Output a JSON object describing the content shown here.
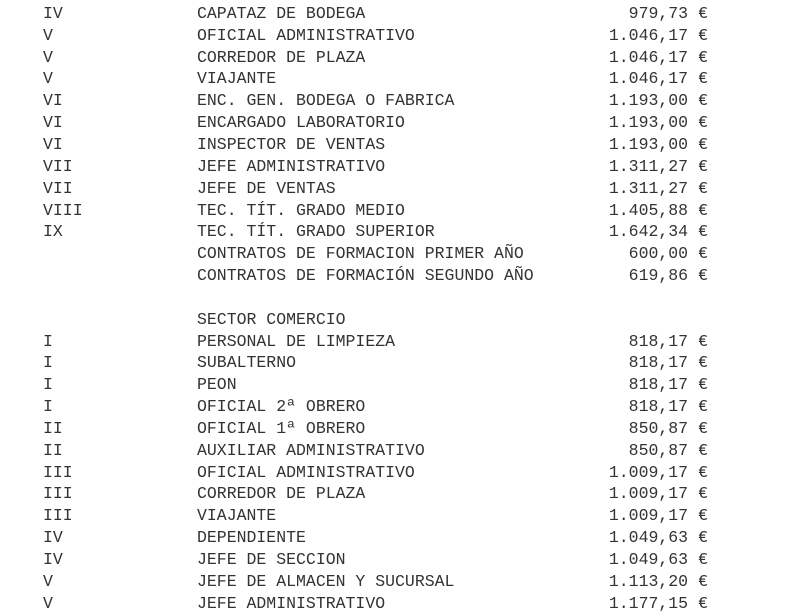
{
  "document": {
    "background_color": "#ffffff",
    "text_color": "#333333",
    "currency_symbol": "€",
    "sections": [
      {
        "heading": null,
        "rows": [
          {
            "category": "IV",
            "title": "CAPATAZ DE BODEGA",
            "amount": "979,73"
          },
          {
            "category": "V",
            "title": "OFICIAL ADMINISTRATIVO",
            "amount": "1.046,17"
          },
          {
            "category": "V",
            "title": "CORREDOR DE PLAZA",
            "amount": "1.046,17"
          },
          {
            "category": "V",
            "title": "VIAJANTE",
            "amount": "1.046,17"
          },
          {
            "category": "VI",
            "title": "ENC. GEN. BODEGA O FABRICA",
            "amount": "1.193,00"
          },
          {
            "category": "VI",
            "title": "ENCARGADO LABORATORIO",
            "amount": "1.193,00"
          },
          {
            "category": "VI",
            "title": "INSPECTOR DE VENTAS",
            "amount": "1.193,00"
          },
          {
            "category": "VII",
            "title": "JEFE ADMINISTRATIVO",
            "amount": "1.311,27"
          },
          {
            "category": "VII",
            "title": "JEFE DE VENTAS",
            "amount": "1.311,27"
          },
          {
            "category": "VIII",
            "title": "TEC. TÍT. GRADO MEDIO",
            "amount": "1.405,88"
          },
          {
            "category": "IX",
            "title": "TEC. TÍT. GRADO SUPERIOR",
            "amount": "1.642,34"
          },
          {
            "category": "",
            "title": "CONTRATOS DE FORMACION PRIMER AÑO",
            "amount": "600,00"
          },
          {
            "category": "",
            "title": "CONTRATOS DE FORMACIÓN SEGUNDO AÑO",
            "amount": "619,86"
          }
        ]
      },
      {
        "heading": "SECTOR COMERCIO",
        "rows": [
          {
            "category": "I",
            "title": "PERSONAL DE LIMPIEZA",
            "amount": "818,17"
          },
          {
            "category": "I",
            "title": "SUBALTERNO",
            "amount": "818,17"
          },
          {
            "category": "I",
            "title": "PEON",
            "amount": "818,17"
          },
          {
            "category": "I",
            "title": "OFICIAL 2ª OBRERO",
            "amount": "818,17"
          },
          {
            "category": "II",
            "title": "OFICIAL 1ª OBRERO",
            "amount": "850,87"
          },
          {
            "category": "II",
            "title": "AUXILIAR ADMINISTRATIVO",
            "amount": "850,87"
          },
          {
            "category": "III",
            "title": "OFICIAL ADMINISTRATIVO",
            "amount": "1.009,17"
          },
          {
            "category": "III",
            "title": "CORREDOR DE PLAZA",
            "amount": "1.009,17"
          },
          {
            "category": "III",
            "title": "VIAJANTE",
            "amount": "1.009,17"
          },
          {
            "category": "IV",
            "title": "DEPENDIENTE",
            "amount": "1.049,63"
          },
          {
            "category": "IV",
            "title": "JEFE DE SECCION",
            "amount": "1.049,63"
          },
          {
            "category": "V",
            "title": "JEFE DE ALMACEN Y SUCURSAL",
            "amount": "1.113,20"
          },
          {
            "category": "V",
            "title": "JEFE ADMINISTRATIVO",
            "amount": "1.177,15"
          }
        ]
      }
    ]
  }
}
